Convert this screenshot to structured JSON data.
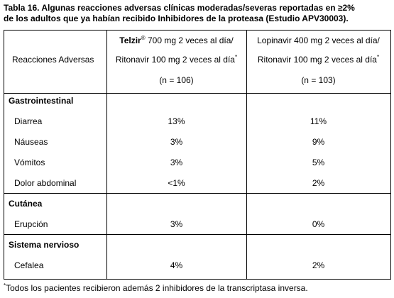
{
  "title": [
    "Tabla 16. Algunas reacciones adversas clínicas moderadas/severas reportadas en ≥2%",
    "de los adultos que ya habían recibido Inhibidores de la proteasa (Estudio APV30003)."
  ],
  "table": {
    "header": {
      "row_label": "Reacciones Adversas",
      "columns": [
        {
          "drug": "Telzir",
          "drug_mark": "®",
          "line1": "700 mg 2 veces al día/",
          "line2": "Ritonavir 100 mg 2 veces al día",
          "line2_mark": "*",
          "n": "(n = 106)"
        },
        {
          "line1": "Lopinavir 400 mg 2 veces al día/",
          "line2": "Ritonavir 100 mg 2 veces al día",
          "line2_mark": "*",
          "n": "(n = 103)"
        }
      ]
    },
    "sections": [
      {
        "name": "Gastrointestinal",
        "rows": [
          [
            "Diarrea",
            "13%",
            "11%"
          ],
          [
            "Náuseas",
            "3%",
            "9%"
          ],
          [
            "Vómitos",
            "3%",
            "5%"
          ],
          [
            "Dolor abdominal",
            "<1%",
            "2%"
          ]
        ]
      },
      {
        "name": "Cutánea",
        "rows": [
          [
            "Erupción",
            "3%",
            "0%"
          ]
        ]
      },
      {
        "name": "Sistema nervioso",
        "rows": [
          [
            "Cefalea",
            "4%",
            "2%"
          ]
        ]
      }
    ]
  },
  "footnote": {
    "mark": "*",
    "text": "Todos los pacientes recibieron además 2 inhibidores de la transcriptasa inversa."
  }
}
